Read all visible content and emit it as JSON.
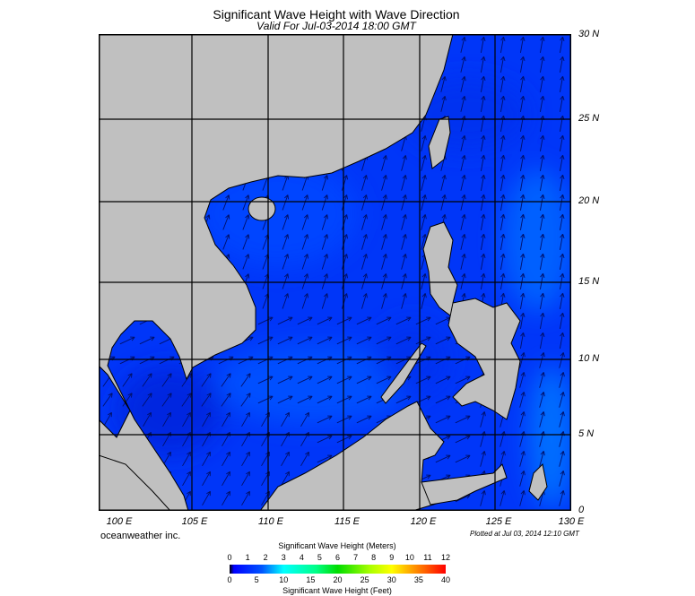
{
  "header": {
    "title": "Significant Wave Height with Wave Direction",
    "subtitle": "Valid For Jul-03-2014 18:00 GMT"
  },
  "map": {
    "lat_labels": [
      "30 N",
      "25 N",
      "20 N",
      "15 N",
      "10 N",
      "5 N",
      "0"
    ],
    "lon_labels": [
      "100 E",
      "105 E",
      "110 E",
      "115 E",
      "120 E",
      "125 E",
      "130 E"
    ],
    "land_color": "#c0c0c0",
    "sea_colors": {
      "low": "#0028e6",
      "mid": "#0040ff",
      "high": "#0060ff",
      "shelf_dark": "#000850"
    }
  },
  "footer": {
    "credit": "oceanweather inc.",
    "plotted": "Plotted at Jul 03, 2014 12:10 GMT"
  },
  "colorbar": {
    "meters_label": "Significant Wave Height (Meters)",
    "feet_label": "Significant Wave Height (Feet)",
    "meters_ticks": [
      "0",
      "1",
      "2",
      "3",
      "4",
      "5",
      "6",
      "7",
      "8",
      "9",
      "10",
      "11",
      "12"
    ],
    "feet_ticks": [
      "0",
      "5",
      "10",
      "15",
      "20",
      "25",
      "30",
      "35",
      "40"
    ]
  }
}
